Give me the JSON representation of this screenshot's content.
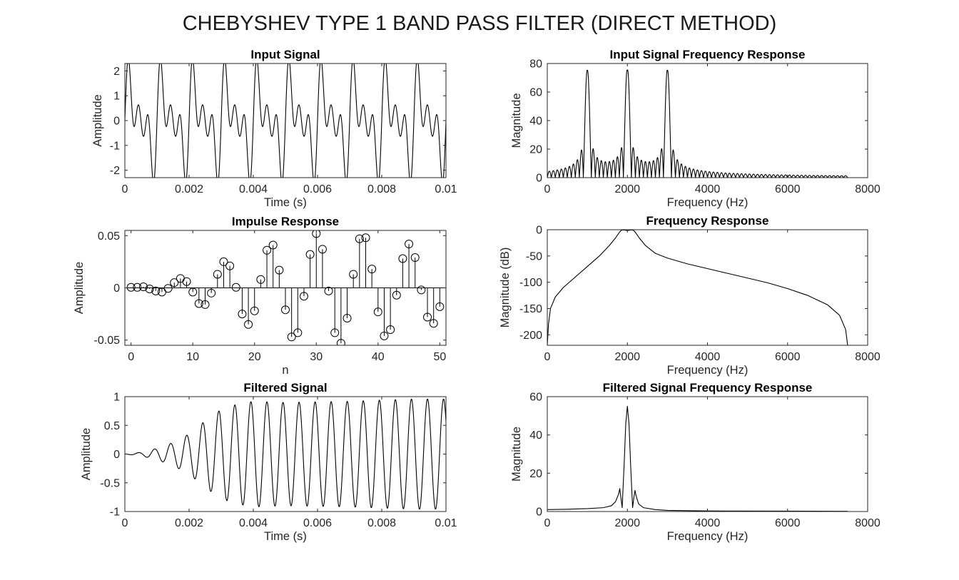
{
  "figure": {
    "title": "CHEBYSHEV TYPE 1 BAND PASS FILTER (DIRECT METHOD)"
  },
  "chart_data": [
    {
      "id": "input-signal",
      "type": "line",
      "title": "Input Signal",
      "xlabel": "Time (s)",
      "ylabel": "Amplitude",
      "xlim": [
        0,
        0.01
      ],
      "ylim": [
        -2.3,
        2.3
      ],
      "xticks": [
        0,
        0.002,
        0.004,
        0.006,
        0.008,
        0.01
      ],
      "xtick_labels": [
        "0",
        "0.002",
        "0.004",
        "0.006",
        "0.008",
        "0.01"
      ],
      "yticks": [
        -2,
        -1,
        0,
        1,
        2
      ],
      "ytick_labels": [
        "-2",
        "-1",
        "0",
        "1",
        "2"
      ],
      "series": [
        {
          "signal": "sin(2π·1000t)+sin(2π·2000t)+sin(2π·3000t)",
          "t_range": [
            0,
            0.01
          ],
          "points": 1400
        }
      ],
      "grid": false
    },
    {
      "id": "input-spectrum",
      "type": "line",
      "title": "Input Signal Frequency Response",
      "xlabel": "Frequency (Hz)",
      "ylabel": "Magnitude",
      "xlim": [
        0,
        8000
      ],
      "ylim": [
        0,
        80
      ],
      "xticks": [
        0,
        2000,
        4000,
        6000,
        8000
      ],
      "xtick_labels": [
        "0",
        "2000",
        "4000",
        "6000",
        "8000"
      ],
      "yticks": [
        0,
        20,
        40,
        60,
        80
      ],
      "ytick_labels": [
        "0",
        "20",
        "40",
        "60",
        "80"
      ],
      "series": [
        {
          "peaks": [
            {
              "f": 1000,
              "mag": 75
            },
            {
              "f": 2000,
              "mag": 75
            },
            {
              "f": 3000,
              "mag": 75
            }
          ],
          "f_range": [
            0,
            7500
          ],
          "mainlobe_width_hz": 100
        }
      ],
      "grid": false
    },
    {
      "id": "impulse-response",
      "type": "stem",
      "title": "Impulse Response",
      "xlabel": "n",
      "ylabel": "Amplitude",
      "xlim": [
        -1,
        51
      ],
      "ylim": [
        -0.055,
        0.055
      ],
      "xticks": [
        0,
        10,
        20,
        30,
        40,
        50
      ],
      "xtick_labels": [
        "0",
        "10",
        "20",
        "30",
        "40",
        "50"
      ],
      "yticks": [
        -0.05,
        0,
        0.05
      ],
      "ytick_labels": [
        "-0.05",
        "0",
        "0.05"
      ],
      "values": [
        0.0005,
        0.0005,
        0.001,
        -0.001,
        -0.003,
        -0.004,
        -0.0005,
        0.005,
        0.009,
        0.006,
        -0.004,
        -0.015,
        -0.016,
        -0.005,
        0.013,
        0.025,
        0.021,
        0.0005,
        -0.025,
        -0.035,
        -0.022,
        0.008,
        0.036,
        0.041,
        0.017,
        -0.021,
        -0.047,
        -0.043,
        -0.008,
        0.032,
        0.052,
        0.037,
        -0.003,
        -0.043,
        -0.053,
        -0.029,
        0.013,
        0.047,
        0.048,
        0.018,
        -0.023,
        -0.046,
        -0.04,
        -0.007,
        0.028,
        0.042,
        0.029,
        -0.002,
        -0.028,
        -0.034,
        -0.018
      ],
      "grid": false
    },
    {
      "id": "frequency-response",
      "type": "line",
      "title": "Frequency Response",
      "xlabel": "Frequency (Hz)",
      "ylabel": "Magnitude (dB)",
      "xlim": [
        0,
        8000
      ],
      "ylim": [
        -220,
        0
      ],
      "xticks": [
        0,
        2000,
        4000,
        6000,
        8000
      ],
      "xtick_labels": [
        "0",
        "2000",
        "4000",
        "6000",
        "8000"
      ],
      "yticks": [
        -200,
        -150,
        -100,
        -50,
        0
      ],
      "ytick_labels": [
        "-200",
        "-150",
        "-100",
        "-50",
        "0"
      ],
      "series": [
        {
          "points": [
            [
              0,
              -220
            ],
            [
              30,
              -180
            ],
            [
              80,
              -150
            ],
            [
              200,
              -128
            ],
            [
              400,
              -110
            ],
            [
              700,
              -90
            ],
            [
              1000,
              -70
            ],
            [
              1300,
              -50
            ],
            [
              1550,
              -30
            ],
            [
              1700,
              -16
            ],
            [
              1800,
              -5
            ],
            [
              1850,
              -1
            ],
            [
              1900,
              -0.5
            ],
            [
              2000,
              -1.5
            ],
            [
              2100,
              -0.5
            ],
            [
              2150,
              -1
            ],
            [
              2200,
              -5
            ],
            [
              2300,
              -16
            ],
            [
              2450,
              -30
            ],
            [
              2700,
              -45
            ],
            [
              3000,
              -54
            ],
            [
              3500,
              -65
            ],
            [
              4000,
              -74
            ],
            [
              4500,
              -83
            ],
            [
              5000,
              -92
            ],
            [
              5500,
              -101
            ],
            [
              6000,
              -112
            ],
            [
              6500,
              -125
            ],
            [
              7000,
              -143
            ],
            [
              7300,
              -163
            ],
            [
              7450,
              -190
            ],
            [
              7500,
              -220
            ]
          ]
        }
      ],
      "grid": false
    },
    {
      "id": "filtered-signal",
      "type": "line",
      "title": "Filtered Signal",
      "xlabel": "Time (s)",
      "ylabel": "Amplitude",
      "xlim": [
        0,
        0.01
      ],
      "ylim": [
        -1,
        1
      ],
      "xticks": [
        0,
        0.002,
        0.004,
        0.006,
        0.008,
        0.01
      ],
      "xtick_labels": [
        "0",
        "0.002",
        "0.004",
        "0.006",
        "0.008",
        "0.01"
      ],
      "yticks": [
        -1,
        -0.5,
        0,
        0.5,
        1
      ],
      "ytick_labels": [
        "-1",
        "-0.5",
        "0",
        "0.5",
        "1"
      ],
      "series": [
        {
          "signal": "2000 Hz sinusoid with growing envelope",
          "frequency_hz": 2000,
          "envelope": [
            [
              0,
              0
            ],
            [
              0.0005,
              0.03
            ],
            [
              0.001,
              0.1
            ],
            [
              0.0015,
              0.2
            ],
            [
              0.002,
              0.35
            ],
            [
              0.0025,
              0.58
            ],
            [
              0.003,
              0.78
            ],
            [
              0.0035,
              0.87
            ],
            [
              0.004,
              0.92
            ],
            [
              0.005,
              0.9
            ],
            [
              0.006,
              0.91
            ],
            [
              0.007,
              0.92
            ],
            [
              0.008,
              0.94
            ],
            [
              0.009,
              0.96
            ],
            [
              0.01,
              0.96
            ]
          ],
          "points": 1000
        }
      ],
      "grid": false
    },
    {
      "id": "filtered-spectrum",
      "type": "line",
      "title": "Filtered Signal Frequency Response",
      "xlabel": "Frequency (Hz)",
      "ylabel": "Magnitude",
      "xlim": [
        0,
        8000
      ],
      "ylim": [
        0,
        60
      ],
      "xticks": [
        0,
        2000,
        4000,
        6000,
        8000
      ],
      "xtick_labels": [
        "0",
        "2000",
        "4000",
        "6000",
        "8000"
      ],
      "yticks": [
        0,
        20,
        40,
        60
      ],
      "ytick_labels": [
        "0",
        "20",
        "40",
        "60"
      ],
      "series": [
        {
          "points": [
            [
              0,
              1
            ],
            [
              500,
              1.2
            ],
            [
              1000,
              1.5
            ],
            [
              1400,
              2
            ],
            [
              1600,
              3
            ],
            [
              1700,
              5
            ],
            [
              1780,
              9
            ],
            [
              1810,
              12
            ],
            [
              1840,
              7
            ],
            [
              1870,
              2
            ],
            [
              1920,
              25
            ],
            [
              1960,
              46
            ],
            [
              2000,
              55
            ],
            [
              2040,
              46
            ],
            [
              2080,
              25
            ],
            [
              2130,
              2
            ],
            [
              2160,
              7
            ],
            [
              2190,
              11
            ],
            [
              2220,
              8
            ],
            [
              2280,
              4
            ],
            [
              2400,
              2
            ],
            [
              2700,
              1
            ],
            [
              3000,
              0.6
            ],
            [
              4000,
              0.3
            ],
            [
              6000,
              0.2
            ],
            [
              7500,
              0.1
            ]
          ]
        }
      ],
      "grid": false
    }
  ]
}
